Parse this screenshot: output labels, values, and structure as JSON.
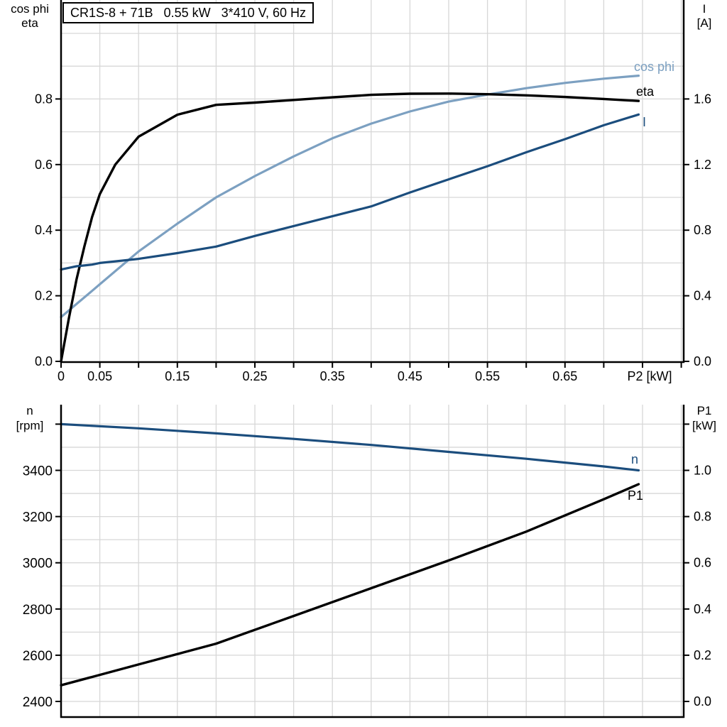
{
  "title_box": {
    "text": "CR1S-8 + 71B   0.55 kW   3*410 V, 60 Hz"
  },
  "colors": {
    "eta": "#000000",
    "cos_phi": "#7CA0C1",
    "current": "#1B4D7D",
    "n": "#1B4D7D",
    "p1": "#000000",
    "grid": "#D7D7D7",
    "axis": "#000000"
  },
  "top_panel": {
    "left_axis_title_line1": "cos phi",
    "left_axis_title_line2": "eta",
    "right_axis_title_line1": "I",
    "right_axis_title_line2": "[A]",
    "left_tick_labels": [
      "0.8",
      "0.6",
      "0.4",
      "0.2",
      "0.0"
    ],
    "left_tick_values": [
      0.8,
      0.6,
      0.4,
      0.2,
      0.0
    ],
    "right_tick_labels": [
      "1.6",
      "1.2",
      "0.8",
      "0.4",
      "0.0"
    ],
    "right_tick_values": [
      1.6,
      1.2,
      0.8,
      0.4,
      0.0
    ],
    "x_tick_labels": [
      "0",
      "0.05",
      "0.15",
      "0.25",
      "0.35",
      "0.45",
      "0.55",
      "0.65"
    ],
    "x_tick_values": [
      0,
      0.05,
      0.15,
      0.25,
      0.35,
      0.45,
      0.55,
      0.65
    ],
    "x_axis_label": "P2 [kW]",
    "curve_labels": {
      "cos_phi": "cos phi",
      "eta": "eta",
      "current": "I"
    }
  },
  "bottom_panel": {
    "left_axis_title_line1": "n",
    "left_axis_title_line2": "[rpm]",
    "right_axis_title_line1": "P1",
    "right_axis_title_line2": "[kW]",
    "left_tick_labels": [
      "3400",
      "3200",
      "3000",
      "2800",
      "2600",
      "2400"
    ],
    "left_tick_values": [
      3400,
      3200,
      3000,
      2800,
      2600,
      2400
    ],
    "right_tick_labels": [
      "1.0",
      "0.8",
      "0.6",
      "0.4",
      "0.2",
      "0.0"
    ],
    "right_tick_values": [
      1.0,
      0.8,
      0.6,
      0.4,
      0.2,
      0.0
    ],
    "curve_labels": {
      "n": "n",
      "p1": "P1"
    }
  },
  "chart_data": [
    {
      "type": "line",
      "title": "CR1S-8 + 71B   0.55 kW   3*410 V, 60 Hz",
      "xlabel": "P2 [kW]",
      "ylabel_left": "cos phi / eta",
      "ylabel_right": "I [A]",
      "xlim": [
        0,
        0.805
      ],
      "ylim_left": [
        0,
        1.1
      ],
      "ylim_right": [
        0,
        2.2
      ],
      "grid": true,
      "x": [
        0,
        0.01,
        0.02,
        0.03,
        0.04,
        0.05,
        0.07,
        0.1,
        0.15,
        0.2,
        0.25,
        0.3,
        0.35,
        0.4,
        0.45,
        0.5,
        0.55,
        0.6,
        0.65,
        0.7,
        0.745
      ],
      "series": [
        {
          "name": "eta",
          "axis": "left",
          "values": [
            0,
            0.13,
            0.25,
            0.35,
            0.44,
            0.51,
            0.6,
            0.685,
            0.752,
            0.782,
            0.789,
            0.797,
            0.805,
            0.8125,
            0.816,
            0.8165,
            0.8145,
            0.811,
            0.806,
            0.8,
            0.794
          ]
        },
        {
          "name": "cos phi",
          "axis": "left",
          "values": [
            0.135,
            0.155,
            0.175,
            0.195,
            0.215,
            0.235,
            0.275,
            0.335,
            0.42,
            0.5,
            0.565,
            0.625,
            0.68,
            0.725,
            0.762,
            0.792,
            0.8135,
            0.833,
            0.849,
            0.862,
            0.871
          ]
        },
        {
          "name": "I",
          "axis": "right",
          "values": [
            0.56,
            0.57,
            0.58,
            0.585,
            0.59,
            0.6,
            0.61,
            0.625,
            0.66,
            0.7,
            0.765,
            0.825,
            0.885,
            0.945,
            1.03,
            1.11,
            1.19,
            1.275,
            1.355,
            1.44,
            1.505
          ]
        }
      ]
    },
    {
      "type": "line",
      "xlabel": "P2 [kW]",
      "ylabel_left": "n [rpm]",
      "ylabel_right": "P1 [kW]",
      "xlim": [
        0,
        0.805
      ],
      "ylim_left": [
        2400,
        3690
      ],
      "ylim_right": [
        0,
        1.29
      ],
      "grid": true,
      "x": [
        0,
        0.1,
        0.2,
        0.3,
        0.4,
        0.5,
        0.6,
        0.7,
        0.745
      ],
      "series": [
        {
          "name": "n",
          "axis": "left",
          "values": [
            3600,
            3582,
            3560,
            3536,
            3510,
            3480,
            3450,
            3417,
            3400
          ]
        },
        {
          "name": "P1",
          "axis": "right",
          "values": [
            0.07,
            0.16,
            0.25,
            0.37,
            0.49,
            0.61,
            0.735,
            0.875,
            0.94
          ]
        }
      ]
    }
  ]
}
